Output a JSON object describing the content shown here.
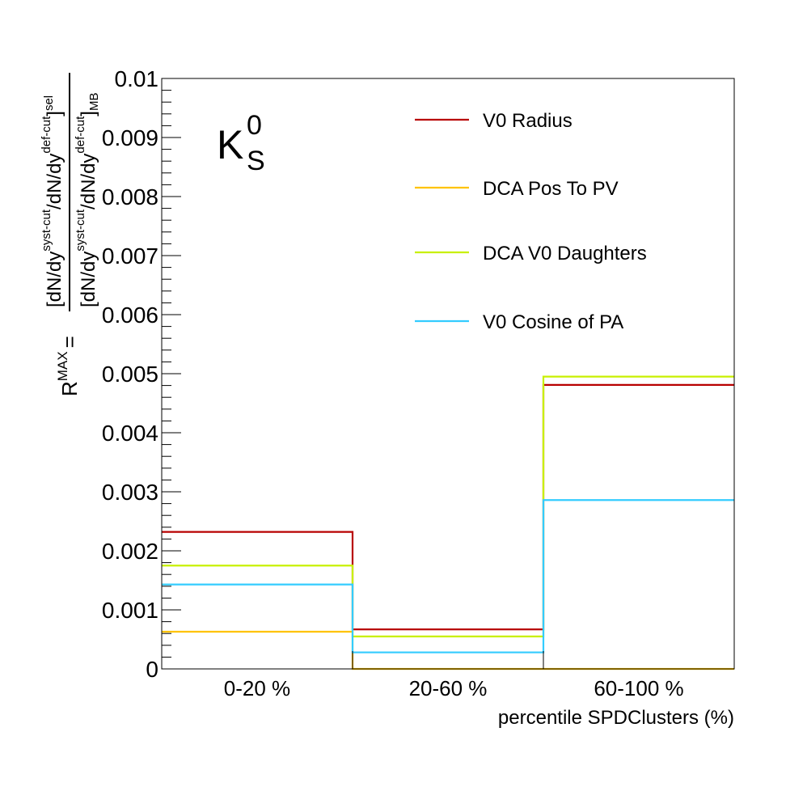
{
  "chart_data": {
    "type": "histogram-step",
    "categories": [
      "0-20 %",
      "20-60 %",
      "60-100 %"
    ],
    "xlabel": "percentile SPDClusters (%)",
    "ylabel": {
      "prefix": "R",
      "prefix_sup": "MAX",
      "equals": "=",
      "num": "[dN/dy",
      "num_sup1": "syst-cut",
      "num_mid": "/dN/dy",
      "num_sup2": "def-cut",
      "num_close": "]",
      "num_sub": "sel",
      "den": "[dN/dy",
      "den_sup1": "syst-cut",
      "den_mid": "/dN/dy",
      "den_sup2": "def-cut",
      "den_close": "]",
      "den_sub": "MB"
    },
    "ylim": [
      0,
      0.01
    ],
    "yticks": [
      "0",
      "0.001",
      "0.002",
      "0.003",
      "0.004",
      "0.005",
      "0.006",
      "0.007",
      "0.008",
      "0.009",
      "0.01"
    ],
    "particle_label": {
      "main": "K",
      "sup": "0",
      "sub": "S"
    },
    "legend_position": "top-right",
    "series": [
      {
        "name": "V0 Radius",
        "color": "#b80000",
        "values": [
          0.00232,
          0.00067,
          0.00481
        ]
      },
      {
        "name": "DCA Pos To PV",
        "color": "#ffc300",
        "values": [
          0.00063,
          0.0,
          0.0
        ]
      },
      {
        "name": "DCA V0 Daughters",
        "color": "#c8f000",
        "values": [
          0.00175,
          0.00055,
          0.00495
        ]
      },
      {
        "name": "V0 Cosine of PA",
        "color": "#33ccff",
        "values": [
          0.00143,
          0.00028,
          0.00286
        ]
      }
    ]
  }
}
